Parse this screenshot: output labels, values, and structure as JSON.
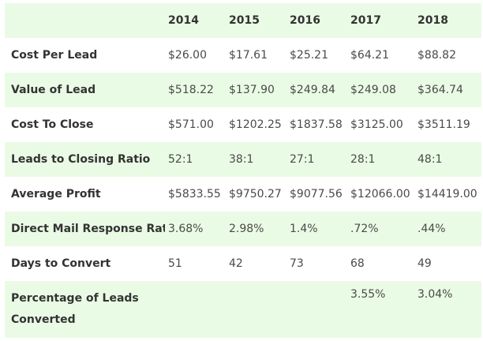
{
  "table": {
    "header": [
      "",
      "2014",
      "2015",
      "2016",
      "2017",
      "2018"
    ],
    "rows": [
      {
        "label": "Cost Per Lead",
        "values": [
          "$26.00",
          "$17.61",
          "$25.21",
          "$64.21",
          "$88.82"
        ]
      },
      {
        "label": "Value of Lead",
        "values": [
          "$518.22",
          "$137.90",
          "$249.84",
          "$249.08",
          "$364.74"
        ]
      },
      {
        "label": "Cost To Close",
        "values": [
          "$571.00",
          "$1202.25",
          "$1837.58",
          "$3125.00",
          "$3511.19"
        ]
      },
      {
        "label": "Leads to Closing Ratio",
        "values": [
          "52:1",
          "38:1",
          "27:1",
          "28:1",
          "48:1"
        ]
      },
      {
        "label": "Average Profit",
        "values": [
          "$5833.55",
          "$9750.27",
          "$9077.56",
          "$12066.00",
          "$14419.00"
        ]
      },
      {
        "label": "Direct Mail Response Rate",
        "values": [
          "3.68%",
          "2.98%",
          "1.4%",
          ".72%",
          ".44%"
        ]
      },
      {
        "label": "Days to Convert",
        "values": [
          "51",
          "42",
          "73",
          "68",
          "49"
        ]
      },
      {
        "label": "Percentage of Leads Converted",
        "values": [
          "",
          "",
          "",
          "3.55%",
          "3.04%"
        ]
      }
    ]
  },
  "colors": {
    "alt_row": "#eafbe5",
    "text": "#333333"
  }
}
